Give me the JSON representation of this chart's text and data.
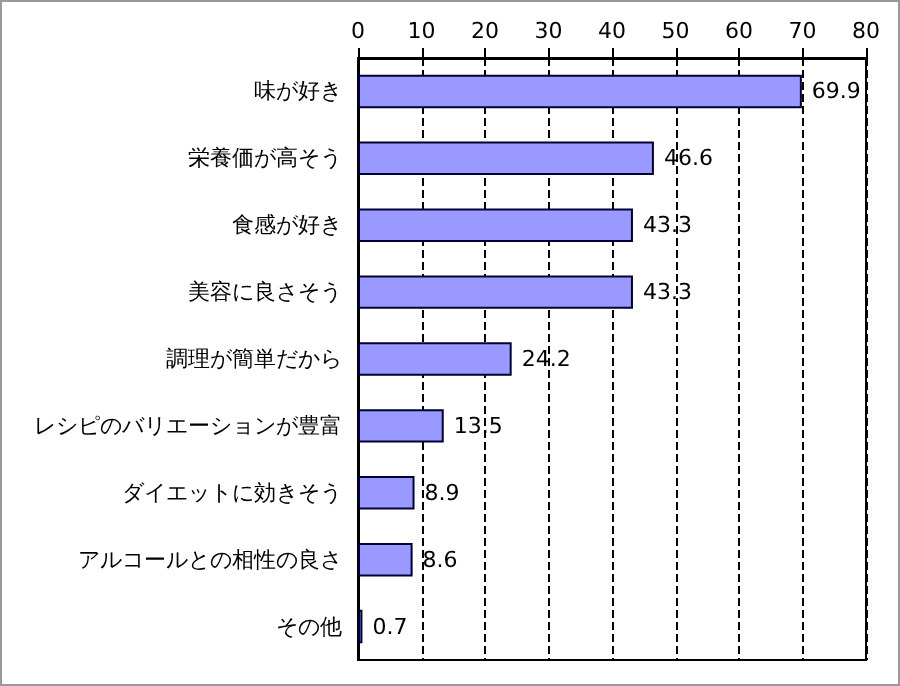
{
  "chart_data": {
    "type": "bar",
    "orientation": "horizontal",
    "categories": [
      "味が好き",
      "栄養価が高そう",
      "食感が好き",
      "美容に良さそう",
      "調理が簡単だから",
      "レシピのバリエーションが豊富",
      "ダイエットに効きそう",
      "アルコールとの相性の良さ",
      "その他"
    ],
    "values": [
      69.9,
      46.6,
      43.3,
      43.3,
      24.2,
      13.5,
      8.9,
      8.6,
      0.7
    ],
    "color": "#9999ff",
    "xlim": [
      0,
      80
    ],
    "xticks": [
      0,
      10,
      20,
      30,
      40,
      50,
      60,
      70,
      80
    ],
    "grid": "x",
    "data_labels": true
  }
}
